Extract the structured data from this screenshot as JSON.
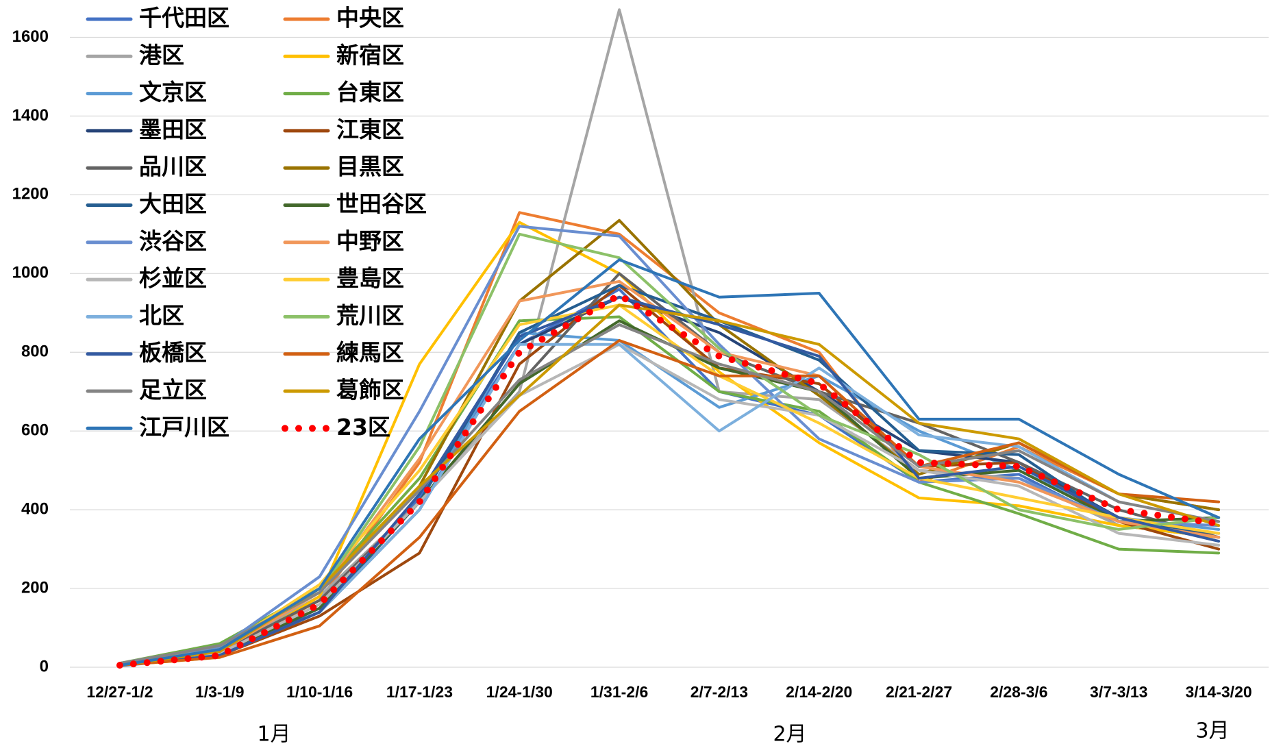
{
  "chart_data": {
    "type": "line",
    "categories": [
      "12/27-1/2",
      "1/3-1/9",
      "1/10-1/16",
      "1/17-1/23",
      "1/24-1/30",
      "1/31-2/6",
      "2/7-2/13",
      "2/14-2/20",
      "2/21-2/27",
      "2/28-3/6",
      "3/7-3/13",
      "3/14-3/20"
    ],
    "month_labels": [
      "1月",
      "2月",
      "3月"
    ],
    "ylim": [
      0,
      1700
    ],
    "yticks": [
      0,
      200,
      400,
      600,
      800,
      1000,
      1200,
      1400,
      1600
    ],
    "grid": true,
    "series": [
      {
        "name": "千代田区",
        "color": "#4472c4",
        "values": [
          5,
          30,
          150,
          430,
          820,
          960,
          700,
          640,
          470,
          490,
          360,
          330
        ]
      },
      {
        "name": "中央区",
        "color": "#ed7d31",
        "values": [
          5,
          35,
          170,
          520,
          1155,
          1100,
          900,
          800,
          470,
          560,
          440,
          400
        ]
      },
      {
        "name": "港区",
        "color": "#a5a5a5",
        "values": [
          5,
          40,
          180,
          420,
          700,
          1670,
          700,
          680,
          500,
          480,
          360,
          330
        ]
      },
      {
        "name": "新宿区",
        "color": "#ffc000",
        "values": [
          5,
          25,
          180,
          770,
          1130,
          1000,
          750,
          570,
          430,
          410,
          360,
          330
        ]
      },
      {
        "name": "文京区",
        "color": "#5b9bd5",
        "values": [
          3,
          30,
          140,
          400,
          850,
          830,
          660,
          740,
          600,
          500,
          380,
          350
        ]
      },
      {
        "name": "台東区",
        "color": "#70ad47",
        "values": [
          10,
          60,
          200,
          480,
          880,
          890,
          700,
          650,
          470,
          390,
          300,
          290
        ]
      },
      {
        "name": "墨田区",
        "color": "#264478",
        "values": [
          5,
          35,
          140,
          400,
          820,
          940,
          850,
          700,
          550,
          520,
          380,
          330
        ]
      },
      {
        "name": "江東区",
        "color": "#9e480e",
        "values": [
          5,
          30,
          130,
          290,
          770,
          970,
          760,
          720,
          510,
          520,
          370,
          300
        ]
      },
      {
        "name": "品川区",
        "color": "#636363",
        "values": [
          5,
          40,
          170,
          420,
          720,
          1000,
          800,
          700,
          620,
          520,
          400,
          330
        ]
      },
      {
        "name": "目黒区",
        "color": "#997300",
        "values": [
          5,
          40,
          200,
          460,
          930,
          1135,
          870,
          690,
          490,
          570,
          440,
          400
        ]
      },
      {
        "name": "大田区",
        "color": "#255e91",
        "values": [
          5,
          30,
          140,
          420,
          850,
          970,
          880,
          780,
          550,
          540,
          370,
          340
        ]
      },
      {
        "name": "世田谷区",
        "color": "#43682b",
        "values": [
          5,
          35,
          150,
          420,
          720,
          880,
          760,
          700,
          480,
          500,
          370,
          380
        ]
      },
      {
        "name": "渋谷区",
        "color": "#698ed0",
        "values": [
          5,
          50,
          230,
          650,
          1120,
          1095,
          820,
          580,
          470,
          480,
          370,
          360
        ]
      },
      {
        "name": "中野区",
        "color": "#f1975a",
        "values": [
          5,
          40,
          190,
          530,
          930,
          980,
          800,
          740,
          510,
          470,
          370,
          330
        ]
      },
      {
        "name": "杉並区",
        "color": "#b7b7b7",
        "values": [
          5,
          35,
          160,
          420,
          690,
          820,
          680,
          640,
          500,
          460,
          340,
          310
        ]
      },
      {
        "name": "豊島区",
        "color": "#ffcd33",
        "values": [
          5,
          45,
          210,
          500,
          870,
          920,
          740,
          620,
          480,
          430,
          380,
          340
        ]
      },
      {
        "name": "北区",
        "color": "#7cafdd",
        "values": [
          5,
          30,
          140,
          400,
          820,
          820,
          600,
          760,
          590,
          560,
          420,
          370
        ]
      },
      {
        "name": "荒川区",
        "color": "#8cc168",
        "values": [
          10,
          55,
          190,
          560,
          1100,
          1040,
          810,
          640,
          540,
          400,
          350,
          380
        ]
      },
      {
        "name": "板橋区",
        "color": "#335aa1",
        "values": [
          5,
          30,
          140,
          440,
          840,
          940,
          870,
          790,
          480,
          510,
          380,
          320
        ]
      },
      {
        "name": "練馬区",
        "color": "#d26012",
        "values": [
          5,
          25,
          105,
          330,
          650,
          830,
          740,
          740,
          510,
          570,
          440,
          420
        ]
      },
      {
        "name": "足立区",
        "color": "#848484",
        "values": [
          10,
          55,
          190,
          450,
          730,
          870,
          770,
          700,
          510,
          550,
          420,
          370
        ]
      },
      {
        "name": "葛飾区",
        "color": "#cc9a00",
        "values": [
          5,
          40,
          200,
          460,
          690,
          920,
          880,
          820,
          620,
          580,
          440,
          360
        ]
      },
      {
        "name": "江戸川区",
        "color": "#2e75b6",
        "values": [
          5,
          45,
          200,
          580,
          830,
          1035,
          940,
          950,
          630,
          630,
          490,
          380
        ]
      },
      {
        "name": "23区",
        "color": "#ff0000",
        "style": "dotted",
        "values": [
          5,
          30,
          160,
          420,
          800,
          945,
          790,
          720,
          520,
          510,
          400,
          365
        ]
      }
    ]
  }
}
